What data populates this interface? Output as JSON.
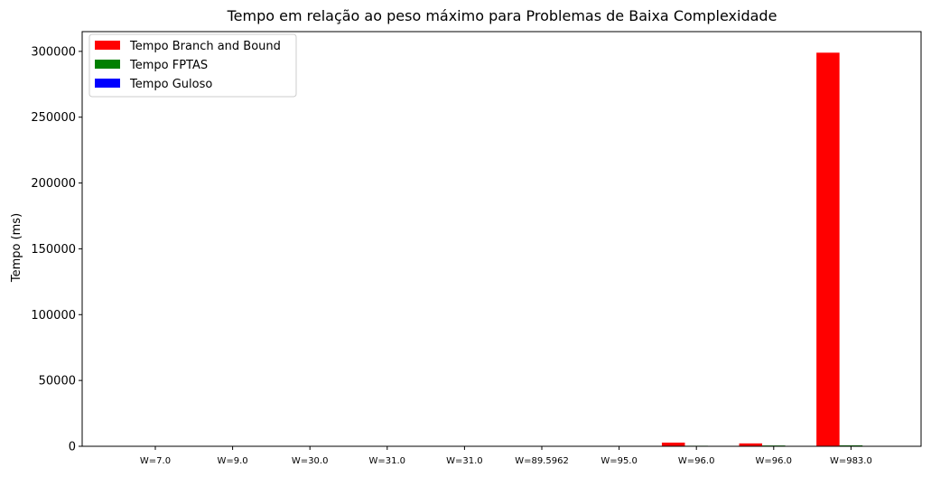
{
  "chart_data": {
    "type": "bar",
    "title": "Tempo em relação ao peso máximo para Problemas de Baixa Complexidade",
    "xlabel": "",
    "ylabel": "Tempo (ms)",
    "ylim": [
      0,
      315000
    ],
    "yticks": [
      0,
      50000,
      100000,
      150000,
      200000,
      250000,
      300000
    ],
    "categories": [
      "W=7.0",
      "W=9.0",
      "W=30.0",
      "W=31.0",
      "W=31.0",
      "W=89.5962",
      "W=95.0",
      "W=96.0",
      "W=96.0",
      "W=983.0"
    ],
    "series": [
      {
        "name": "Tempo Branch and Bound",
        "color": "#ff0000",
        "values": [
          5,
          5,
          10,
          10,
          15,
          20,
          30,
          2800,
          2200,
          299000
        ]
      },
      {
        "name": "Tempo FPTAS",
        "color": "#008000",
        "values": [
          1,
          1,
          2,
          2,
          2,
          3,
          3,
          400,
          600,
          700
        ]
      },
      {
        "name": "Tempo Guloso",
        "color": "#0000ff",
        "values": [
          0,
          0,
          0,
          0,
          0,
          0,
          0,
          0,
          0,
          0
        ]
      }
    ],
    "legend_position": "top-left",
    "grid": false
  }
}
